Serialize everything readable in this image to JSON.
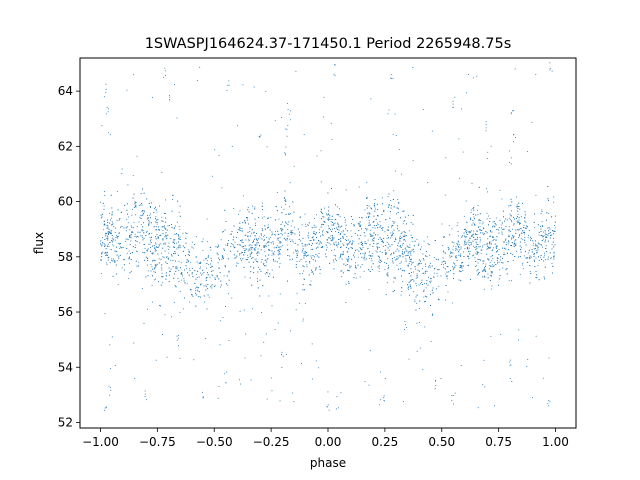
{
  "chart_data": {
    "type": "scatter",
    "title": "1SWASPJ164624.37-171450.1 Period 2265948.75s",
    "xlabel": "phase",
    "ylabel": "flux",
    "xlim": [
      -1.09,
      1.09
    ],
    "ylim": [
      51.8,
      65.2
    ],
    "xticks": [
      -1.0,
      -0.75,
      -0.5,
      -0.25,
      0.0,
      0.25,
      0.5,
      0.75,
      1.0
    ],
    "xtick_labels": [
      "−1.00",
      "−0.75",
      "−0.50",
      "−0.25",
      "0.00",
      "0.25",
      "0.50",
      "0.75",
      "1.00"
    ],
    "yticks": [
      52,
      54,
      56,
      58,
      60,
      62,
      64
    ],
    "ytick_labels": [
      "52",
      "54",
      "56",
      "58",
      "60",
      "62",
      "64"
    ],
    "grid": false,
    "legend": "none",
    "point_color": "#1f77b4",
    "series": [
      {
        "description_points": "folded light curve sampled as [phase, flux_center, flux_spread, density]",
        "profile": [
          [
            -1.0,
            58.6,
            1.2,
            1.0
          ],
          [
            -0.97,
            58.8,
            1.1,
            1.0
          ],
          [
            -0.94,
            58.3,
            1.0,
            0.8
          ],
          [
            -0.9,
            58.5,
            1.1,
            0.6
          ],
          [
            -0.86,
            58.9,
            1.1,
            0.9
          ],
          [
            -0.82,
            59.0,
            1.2,
            1.0
          ],
          [
            -0.78,
            58.6,
            1.5,
            1.0
          ],
          [
            -0.74,
            58.4,
            1.6,
            1.0
          ],
          [
            -0.7,
            58.7,
            1.4,
            1.0
          ],
          [
            -0.66,
            58.2,
            1.5,
            0.9
          ],
          [
            -0.62,
            57.6,
            1.3,
            0.7
          ],
          [
            -0.58,
            57.3,
            1.2,
            0.6
          ],
          [
            -0.54,
            57.5,
            1.1,
            0.6
          ],
          [
            -0.5,
            57.6,
            1.0,
            0.5
          ],
          [
            -0.46,
            58.0,
            1.1,
            0.6
          ],
          [
            -0.42,
            58.3,
            1.1,
            0.7
          ],
          [
            -0.38,
            58.7,
            1.0,
            0.9
          ],
          [
            -0.34,
            58.6,
            1.2,
            1.0
          ],
          [
            -0.3,
            58.2,
            1.3,
            1.0
          ],
          [
            -0.26,
            58.3,
            1.2,
            0.9
          ],
          [
            -0.22,
            58.8,
            1.1,
            0.8
          ],
          [
            -0.18,
            59.0,
            1.2,
            0.8
          ],
          [
            -0.14,
            58.6,
            1.0,
            0.7
          ],
          [
            -0.1,
            58.1,
            1.1,
            0.7
          ],
          [
            -0.06,
            58.4,
            1.2,
            0.8
          ],
          [
            -0.02,
            58.8,
            1.1,
            0.9
          ],
          [
            0.02,
            58.9,
            1.1,
            0.9
          ],
          [
            0.06,
            58.5,
            1.0,
            0.8
          ],
          [
            0.1,
            58.2,
            1.1,
            0.7
          ],
          [
            0.14,
            58.5,
            1.2,
            0.8
          ],
          [
            0.18,
            58.9,
            1.1,
            0.9
          ],
          [
            0.22,
            58.8,
            1.2,
            1.0
          ],
          [
            0.26,
            58.6,
            1.6,
            1.0
          ],
          [
            0.3,
            58.5,
            1.5,
            1.0
          ],
          [
            0.34,
            58.4,
            1.4,
            1.0
          ],
          [
            0.38,
            57.6,
            1.3,
            0.8
          ],
          [
            0.42,
            57.3,
            1.2,
            0.7
          ],
          [
            0.46,
            57.4,
            1.1,
            0.6
          ],
          [
            0.5,
            57.7,
            1.0,
            0.5
          ],
          [
            0.54,
            58.0,
            1.1,
            0.6
          ],
          [
            0.58,
            58.3,
            1.1,
            0.7
          ],
          [
            0.62,
            58.7,
            1.0,
            0.9
          ],
          [
            0.66,
            58.7,
            1.2,
            1.0
          ],
          [
            0.7,
            58.3,
            1.3,
            1.0
          ],
          [
            0.74,
            58.4,
            1.2,
            0.9
          ],
          [
            0.78,
            58.8,
            1.1,
            0.8
          ],
          [
            0.82,
            59.0,
            1.2,
            0.8
          ],
          [
            0.86,
            58.6,
            1.0,
            0.7
          ],
          [
            0.9,
            58.2,
            1.1,
            0.7
          ],
          [
            0.94,
            58.5,
            1.2,
            0.8
          ],
          [
            0.97,
            58.8,
            1.1,
            0.9
          ],
          [
            1.0,
            58.7,
            1.2,
            1.0
          ]
        ],
        "flares": [
          [
            -0.17,
            63.2
          ],
          [
            -0.18,
            62.6
          ],
          [
            -0.19,
            61.8
          ],
          [
            0.81,
            63.2
          ],
          [
            0.82,
            62.4
          ],
          [
            0.8,
            61.6
          ],
          [
            -0.98,
            64.0
          ],
          [
            -0.97,
            63.4
          ],
          [
            -0.72,
            64.6
          ],
          [
            -0.7,
            63.8
          ],
          [
            0.03,
            64.8
          ],
          [
            0.28,
            64.6
          ],
          [
            0.98,
            64.8
          ],
          [
            -0.44,
            64.2
          ],
          [
            0.55,
            63.5
          ],
          [
            -0.3,
            62.5
          ],
          [
            0.7,
            62.8
          ]
        ],
        "dips": [
          [
            -0.98,
            52.6
          ],
          [
            -0.96,
            53.2
          ],
          [
            -0.8,
            52.9
          ],
          [
            -0.55,
            53.1
          ],
          [
            -0.45,
            53.6
          ],
          [
            0.0,
            52.6
          ],
          [
            0.25,
            53.0
          ],
          [
            0.47,
            53.3
          ],
          [
            0.55,
            52.8
          ],
          [
            0.97,
            52.6
          ],
          [
            -0.2,
            54.5
          ],
          [
            0.8,
            54.3
          ],
          [
            -0.66,
            55.0
          ],
          [
            0.34,
            55.4
          ]
        ]
      }
    ]
  }
}
